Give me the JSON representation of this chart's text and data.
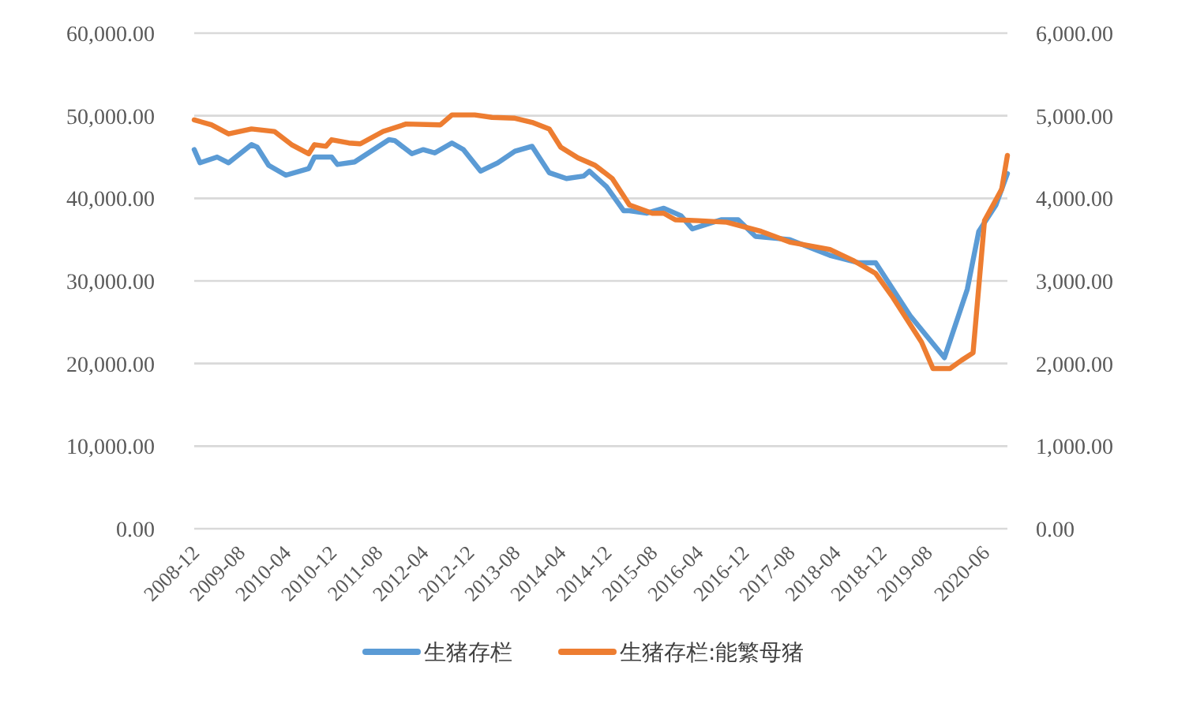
{
  "chart_data": {
    "type": "line",
    "xlim": [
      "2008-12",
      "2020-10"
    ],
    "xticks": [
      "2008-12",
      "2009-08",
      "2010-04",
      "2010-12",
      "2011-08",
      "2012-04",
      "2012-12",
      "2013-08",
      "2014-04",
      "2014-12",
      "2015-08",
      "2016-04",
      "2016-12",
      "2017-08",
      "2018-04",
      "2018-12",
      "2019-08",
      "2020-06"
    ],
    "ylim": [
      0,
      60000
    ],
    "yticks": [
      {
        "value": 0,
        "label": "0.00"
      },
      {
        "value": 10000,
        "label": "10,000.00"
      },
      {
        "value": 20000,
        "label": "20,000.00"
      },
      {
        "value": 30000,
        "label": "30,000.00"
      },
      {
        "value": 40000,
        "label": "40,000.00"
      },
      {
        "value": 50000,
        "label": "50,000.00"
      },
      {
        "value": 60000,
        "label": "60,000.00"
      }
    ],
    "y2lim": [
      0,
      6000
    ],
    "y2ticks": [
      {
        "value": 0,
        "label": "0.00"
      },
      {
        "value": 1000,
        "label": "1,000.00"
      },
      {
        "value": 2000,
        "label": "2,000.00"
      },
      {
        "value": 3000,
        "label": "3,000.00"
      },
      {
        "value": 4000,
        "label": "4,000.00"
      },
      {
        "value": 5000,
        "label": "5,000.00"
      },
      {
        "value": 6000,
        "label": "6,000.00"
      }
    ],
    "grid": "y",
    "legend": "bottom",
    "series": [
      {
        "name": "生猪存栏",
        "color": "#5b9bd5",
        "x": [
          "2008-12",
          "2009-01",
          "2009-04",
          "2009-06",
          "2009-10",
          "2009-11",
          "2010-01",
          "2010-04",
          "2010-08",
          "2010-09",
          "2010-12",
          "2011-01",
          "2011-04",
          "2011-10",
          "2011-11",
          "2012-02",
          "2012-04",
          "2012-06",
          "2012-09",
          "2012-11",
          "2013-02",
          "2013-05",
          "2013-08",
          "2013-11",
          "2014-02",
          "2014-05",
          "2014-08",
          "2014-09",
          "2014-12",
          "2015-03",
          "2015-04",
          "2015-07",
          "2015-10",
          "2016-01",
          "2016-03",
          "2016-08",
          "2016-11",
          "2017-02",
          "2017-08",
          "2018-03",
          "2018-08",
          "2018-11",
          "2019-02",
          "2019-05",
          "2019-11",
          "2020-03",
          "2020-05",
          "2020-08",
          "2020-10"
        ],
        "values": [
          45900,
          44300,
          45000,
          44300,
          46500,
          46200,
          44000,
          42800,
          43600,
          45000,
          45000,
          44100,
          44400,
          47100,
          47000,
          45400,
          45900,
          45500,
          46700,
          45900,
          43300,
          44300,
          45700,
          46300,
          43100,
          42400,
          42700,
          43300,
          41400,
          38500,
          38500,
          38200,
          38800,
          37900,
          36300,
          37400,
          37400,
          35400,
          35000,
          33100,
          32200,
          32200,
          29000,
          25800,
          20700,
          29000,
          36000,
          39200,
          43000
        ]
      },
      {
        "name": "生猪存栏:能繁母猪",
        "color": "#ed7d31",
        "axis": "y2",
        "x": [
          "2008-12",
          "2009-03",
          "2009-06",
          "2009-10",
          "2010-02",
          "2010-05",
          "2010-08",
          "2010-09",
          "2010-11",
          "2010-12",
          "2011-03",
          "2011-05",
          "2011-09",
          "2012-01",
          "2012-07",
          "2012-09",
          "2013-01",
          "2013-04",
          "2013-08",
          "2013-11",
          "2014-02",
          "2014-04",
          "2014-07",
          "2014-10",
          "2015-01",
          "2015-04",
          "2015-08",
          "2015-10",
          "2015-12",
          "2016-04",
          "2016-09",
          "2017-03",
          "2017-08",
          "2018-03",
          "2018-07",
          "2018-11",
          "2019-02",
          "2019-07",
          "2019-09",
          "2019-12",
          "2020-02",
          "2020-04",
          "2020-06",
          "2020-09",
          "2020-10"
        ],
        "values": [
          4950,
          4890,
          4780,
          4840,
          4810,
          4650,
          4540,
          4650,
          4630,
          4710,
          4670,
          4660,
          4810,
          4900,
          4890,
          5010,
          5010,
          4980,
          4970,
          4920,
          4840,
          4620,
          4490,
          4400,
          4240,
          3920,
          3820,
          3820,
          3740,
          3730,
          3710,
          3600,
          3470,
          3380,
          3250,
          3090,
          2800,
          2260,
          1940,
          1940,
          2040,
          2130,
          3730,
          4110,
          4520
        ]
      }
    ]
  }
}
